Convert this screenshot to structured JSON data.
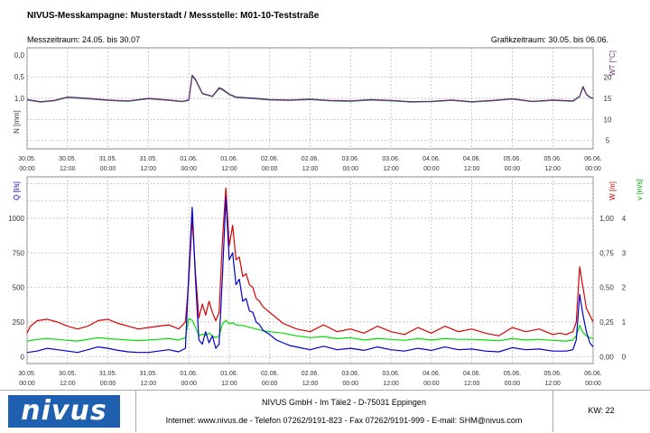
{
  "header": {
    "title": "NIVUS-Messkampagne: Musterstadt / Messstelle: M01-10-Teststraße",
    "messzeitraum": "Messzeitraum: 24.05. bis 30.07",
    "grafikzeitraum": "Grafikzeitraum: 30.05. bis 06.06."
  },
  "footer": {
    "logo": "nivus",
    "address": "NIVUS GmbH - Im Täle2 - D-75031 Eppingen",
    "contact": "Internet: www.nivus.de - Telefon 07262/9191-823 - Fax 07262/9191-999 - E-mail: SHM@nivus.com",
    "kw": "KW: 22"
  },
  "colors": {
    "level": "#6a2a7a",
    "temperature": "#2e8b57",
    "q": "#0000cc",
    "w": "#dd0000",
    "v": "#00dd00",
    "grid": "#b0b0b0"
  },
  "time_ticks": [
    [
      "30.05.",
      "00:00"
    ],
    [
      "30.05.",
      "12:00"
    ],
    [
      "31.05.",
      "00:00"
    ],
    [
      "31.05.",
      "12:00"
    ],
    [
      "01.06.",
      "00:00"
    ],
    [
      "01.06.",
      "12:00"
    ],
    [
      "02.06.",
      "00:00"
    ],
    [
      "02.06.",
      "12:00"
    ],
    [
      "03.06.",
      "00:00"
    ],
    [
      "03.06.",
      "12:00"
    ],
    [
      "04.06.",
      "00:00"
    ],
    [
      "04.06.",
      "12:00"
    ],
    [
      "05.06.",
      "00:00"
    ],
    [
      "05.06.",
      "12:00"
    ],
    [
      "06.06.",
      "00:00"
    ]
  ],
  "chart_data": [
    {
      "type": "line",
      "x_unit": "hours since 30.05. 00:00",
      "xlim": [
        0,
        168
      ],
      "ylabel_left": "N [mm]",
      "ylabel_right": "WT [°C]",
      "yticks_left": [
        "0,0",
        "0,5",
        "1,0"
      ],
      "yticks_right": [
        "5",
        "10",
        "15",
        "20"
      ],
      "ylim_right": [
        3,
        27
      ],
      "grid": true,
      "series": [
        {
          "key": "level",
          "x": [
            0,
            4,
            8,
            12,
            18,
            24,
            30,
            36,
            42,
            46,
            48,
            49,
            50,
            52,
            55,
            57,
            58,
            60,
            62,
            68,
            72,
            78,
            84,
            90,
            96,
            102,
            108,
            114,
            120,
            126,
            132,
            138,
            144,
            150,
            156,
            162,
            164,
            165,
            166,
            167,
            168
          ],
          "values": [
            14.7,
            14.2,
            14.5,
            15.3,
            15.0,
            14.6,
            14.4,
            15.0,
            14.6,
            14.3,
            14.6,
            20.5,
            19.5,
            16.2,
            15.5,
            17.5,
            17.2,
            16.0,
            15.3,
            15.0,
            14.7,
            14.6,
            14.8,
            14.5,
            14.4,
            14.7,
            14.5,
            14.2,
            14.3,
            14.6,
            14.2,
            14.5,
            14.9,
            14.3,
            14.6,
            14.4,
            15.5,
            17.8,
            16.0,
            15.3,
            15.0
          ]
        },
        {
          "key": "temperature",
          "x": [
            0,
            4,
            8,
            12,
            18,
            24,
            30,
            36,
            42,
            46,
            48,
            49,
            50,
            52,
            55,
            57,
            58,
            60,
            62,
            68,
            72,
            78,
            84,
            90,
            96,
            102,
            108,
            114,
            120,
            126,
            132,
            138,
            144,
            150,
            156,
            162,
            164,
            165,
            166,
            167,
            168
          ],
          "values": [
            14.6,
            14.1,
            14.4,
            15.2,
            14.9,
            14.5,
            14.3,
            14.9,
            14.5,
            14.2,
            14.5,
            20.3,
            19.3,
            16.1,
            15.4,
            17.3,
            17.0,
            15.9,
            15.2,
            14.9,
            14.6,
            14.5,
            14.7,
            14.4,
            14.3,
            14.6,
            14.4,
            14.1,
            14.2,
            14.5,
            14.1,
            14.4,
            14.8,
            14.2,
            14.5,
            14.3,
            15.4,
            17.6,
            15.9,
            15.2,
            14.9
          ]
        }
      ]
    },
    {
      "type": "line",
      "x_unit": "hours since 30.05. 00:00",
      "xlim": [
        0,
        168
      ],
      "ylabel_left": "Q [l/s]",
      "ylabel_right_w": "W [m]",
      "ylabel_right_v": "v [m/s]",
      "yticks_left": [
        "0",
        "250",
        "500",
        "750",
        "1000"
      ],
      "ylim_left": [
        -50,
        1300
      ],
      "yticks_w": [
        "0,00",
        "0,25",
        "0,50",
        "0,75",
        "1,00"
      ],
      "yticks_v": [
        "0",
        "1",
        "2",
        "3",
        "4"
      ],
      "grid": true,
      "series": [
        {
          "key": "w",
          "name": "W [m]",
          "x": [
            0,
            1,
            3,
            6,
            9,
            12,
            15,
            18,
            21,
            24,
            27,
            30,
            33,
            36,
            39,
            42,
            45,
            47,
            48,
            49,
            50,
            51,
            52,
            53,
            54,
            55,
            56,
            57,
            58,
            59,
            60,
            61,
            62,
            63,
            64,
            65,
            66,
            67,
            68,
            69,
            70,
            72,
            74,
            76,
            78,
            80,
            84,
            88,
            92,
            96,
            100,
            104,
            108,
            112,
            116,
            120,
            124,
            128,
            132,
            136,
            140,
            144,
            148,
            152,
            156,
            158,
            160,
            162,
            163,
            164,
            165,
            166,
            167,
            168
          ],
          "values": [
            0.17,
            0.22,
            0.26,
            0.27,
            0.25,
            0.22,
            0.2,
            0.22,
            0.26,
            0.27,
            0.24,
            0.22,
            0.2,
            0.21,
            0.22,
            0.23,
            0.2,
            0.25,
            0.55,
            1.0,
            0.6,
            0.28,
            0.38,
            0.3,
            0.4,
            0.32,
            0.26,
            0.32,
            0.85,
            1.22,
            0.8,
            0.95,
            0.7,
            0.72,
            0.58,
            0.6,
            0.52,
            0.5,
            0.42,
            0.4,
            0.36,
            0.32,
            0.28,
            0.24,
            0.22,
            0.2,
            0.18,
            0.23,
            0.18,
            0.2,
            0.17,
            0.22,
            0.18,
            0.16,
            0.21,
            0.17,
            0.22,
            0.18,
            0.2,
            0.17,
            0.15,
            0.21,
            0.18,
            0.2,
            0.16,
            0.17,
            0.16,
            0.18,
            0.25,
            0.65,
            0.5,
            0.35,
            0.3,
            0.25
          ]
        },
        {
          "key": "v",
          "name": "v [m/s]",
          "x": [
            0,
            3,
            6,
            9,
            12,
            15,
            18,
            21,
            24,
            27,
            30,
            33,
            36,
            39,
            42,
            45,
            47,
            48,
            49,
            50,
            51,
            52,
            53,
            54,
            55,
            56,
            57,
            58,
            59,
            60,
            61,
            62,
            64,
            66,
            68,
            70,
            72,
            76,
            80,
            84,
            88,
            92,
            96,
            100,
            104,
            108,
            112,
            116,
            120,
            124,
            128,
            132,
            136,
            140,
            144,
            148,
            152,
            156,
            160,
            162,
            163,
            164,
            165,
            166,
            167,
            168
          ],
          "values": [
            0.45,
            0.5,
            0.52,
            0.5,
            0.47,
            0.45,
            0.5,
            0.55,
            0.52,
            0.5,
            0.48,
            0.46,
            0.48,
            0.5,
            0.52,
            0.48,
            0.55,
            1.1,
            1.05,
            0.85,
            0.6,
            0.65,
            0.62,
            0.68,
            0.6,
            0.55,
            0.6,
            0.95,
            1.05,
            0.95,
            0.98,
            0.92,
            0.9,
            0.85,
            0.8,
            0.75,
            0.72,
            0.68,
            0.6,
            0.55,
            0.58,
            0.52,
            0.55,
            0.48,
            0.52,
            0.5,
            0.47,
            0.52,
            0.48,
            0.52,
            0.5,
            0.5,
            0.48,
            0.46,
            0.52,
            0.48,
            0.5,
            0.47,
            0.45,
            0.48,
            0.6,
            0.9,
            0.7,
            0.6,
            0.55,
            0.52
          ]
        },
        {
          "key": "q",
          "name": "Q [l/s]",
          "x": [
            0,
            3,
            6,
            9,
            12,
            15,
            18,
            21,
            24,
            27,
            30,
            33,
            36,
            39,
            42,
            45,
            47,
            48,
            49,
            50,
            51,
            52,
            53,
            54,
            55,
            56,
            57,
            58,
            59,
            60,
            61,
            62,
            63,
            64,
            65,
            66,
            67,
            68,
            69,
            70,
            72,
            74,
            76,
            78,
            80,
            84,
            88,
            92,
            96,
            100,
            104,
            108,
            112,
            116,
            120,
            124,
            128,
            132,
            136,
            140,
            144,
            148,
            152,
            156,
            160,
            162,
            163,
            164,
            165,
            166,
            167,
            168
          ],
          "values": [
            30,
            40,
            60,
            50,
            40,
            30,
            50,
            70,
            60,
            45,
            35,
            30,
            30,
            40,
            50,
            35,
            60,
            600,
            1080,
            550,
            120,
            90,
            180,
            100,
            150,
            60,
            90,
            600,
            1150,
            700,
            750,
            520,
            560,
            400,
            420,
            330,
            320,
            250,
            230,
            190,
            160,
            120,
            100,
            80,
            70,
            50,
            75,
            50,
            60,
            45,
            70,
            50,
            40,
            60,
            45,
            70,
            50,
            55,
            40,
            35,
            65,
            50,
            55,
            40,
            40,
            50,
            120,
            450,
            300,
            180,
            100,
            70
          ]
        }
      ]
    }
  ]
}
